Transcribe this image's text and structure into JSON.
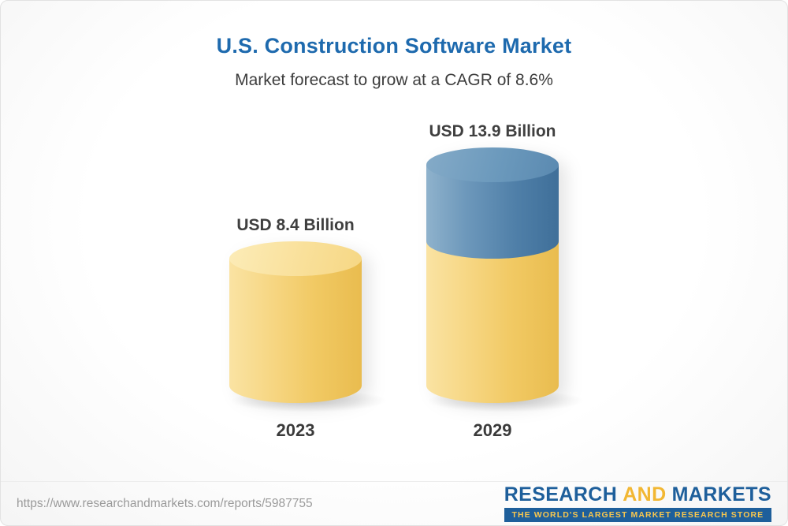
{
  "header": {
    "title": "U.S. Construction Software Market",
    "subtitle": "Market forecast to grow at a CAGR of 8.6%"
  },
  "chart_data": {
    "type": "bar",
    "variant": "3d-cylinder",
    "title": "U.S. Construction Software Market",
    "subtitle": "Market forecast to grow at a CAGR of 8.6%",
    "categories": [
      "2023",
      "2029"
    ],
    "values": [
      8.4,
      13.9
    ],
    "value_labels": [
      "USD 8.4 Billion",
      "USD 13.9 Billion"
    ],
    "unit": "USD Billion",
    "cagr_percent": 8.6,
    "legend_position": "none",
    "axes_visible": false,
    "grid": false,
    "colors": {
      "base_segment": "#F2CD6E",
      "growth_segment": "#5C8CB4",
      "title": "#1E6AAE",
      "label_text": "#3F3F3F"
    }
  },
  "footer": {
    "url": "https://www.researchandmarkets.com/reports/5987755",
    "logo": {
      "word1": "RESEARCH",
      "word2": "AND",
      "word3": "MARKETS",
      "tagline": "THE WORLD'S LARGEST MARKET RESEARCH STORE"
    }
  }
}
